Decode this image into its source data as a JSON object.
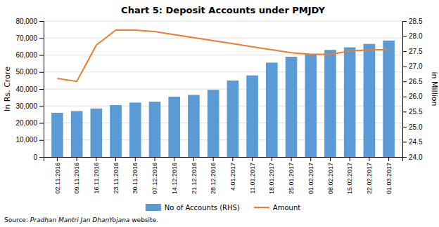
{
  "chart_data": {
    "type": "bar",
    "title": "Chart 5: Deposit Accounts under PMJDY",
    "categories": [
      "02.11.2016",
      "09.11.2016",
      "16.11.2016",
      "23.11.2016",
      "30.11.2016",
      "07.12.2016",
      "14.12.2016",
      "21.12.2016",
      "28.12.2016",
      "4.01.2017",
      "11.01.2017",
      "18.01.2017",
      "25.01.2017",
      "01.02.2017",
      "08.02.2017",
      "15.02.2017",
      "22.02.2017",
      "01.03.2017"
    ],
    "series": [
      {
        "name": "No of Accounts (RHS)",
        "type": "bar",
        "color": "#5B9BD5",
        "values": [
          26000,
          27000,
          28500,
          30500,
          32000,
          32500,
          35500,
          36500,
          39500,
          45000,
          48000,
          55500,
          59000,
          60500,
          63000,
          64500,
          66500,
          68500
        ]
      },
      {
        "name": "Amount",
        "type": "line",
        "color": "#ED7D31",
        "axis": "y2",
        "values": [
          26.6,
          26.5,
          27.7,
          28.2,
          28.2,
          28.15,
          28.05,
          27.95,
          27.85,
          27.75,
          27.65,
          27.55,
          27.45,
          27.4,
          27.4,
          27.5,
          27.55,
          27.55
        ]
      }
    ],
    "ylabel": "In Rs. Crore",
    "y2label": "in Million",
    "ylim": [
      0,
      80000
    ],
    "yticks": [
      0,
      {
        "value": 10000,
        "label": "10,000"
      },
      {
        "value": 20000,
        "label": "20,000"
      },
      {
        "value": 30000,
        "label": "30,000"
      },
      {
        "value": 40000,
        "label": "40,000"
      },
      {
        "value": 50000,
        "label": "50,000"
      },
      {
        "value": 60000,
        "label": "60,000"
      },
      {
        "value": 70000,
        "label": "70,000"
      },
      {
        "value": 80000,
        "label": "80,000"
      }
    ],
    "y2lim": [
      24.0,
      28.5
    ],
    "y2ticks": [
      {
        "value": 24.0,
        "label": "24.0"
      },
      {
        "value": 24.5,
        "label": "24.5"
      },
      {
        "value": 25.0,
        "label": "25.0"
      },
      {
        "value": 25.5,
        "label": "25.5"
      },
      {
        "value": 26.0,
        "label": "26.0"
      },
      {
        "value": 26.5,
        "label": "26.5"
      },
      {
        "value": 27.0,
        "label": "27.0"
      },
      {
        "value": 27.5,
        "label": "27.5"
      },
      {
        "value": 28.0,
        "label": "28.0"
      },
      {
        "value": 28.5,
        "label": "28.5"
      }
    ],
    "grid": true,
    "legend": "bottom",
    "annotations": [
      "Source: ",
      "Pradhan Mantri Jan DhanYojana",
      " website."
    ]
  }
}
